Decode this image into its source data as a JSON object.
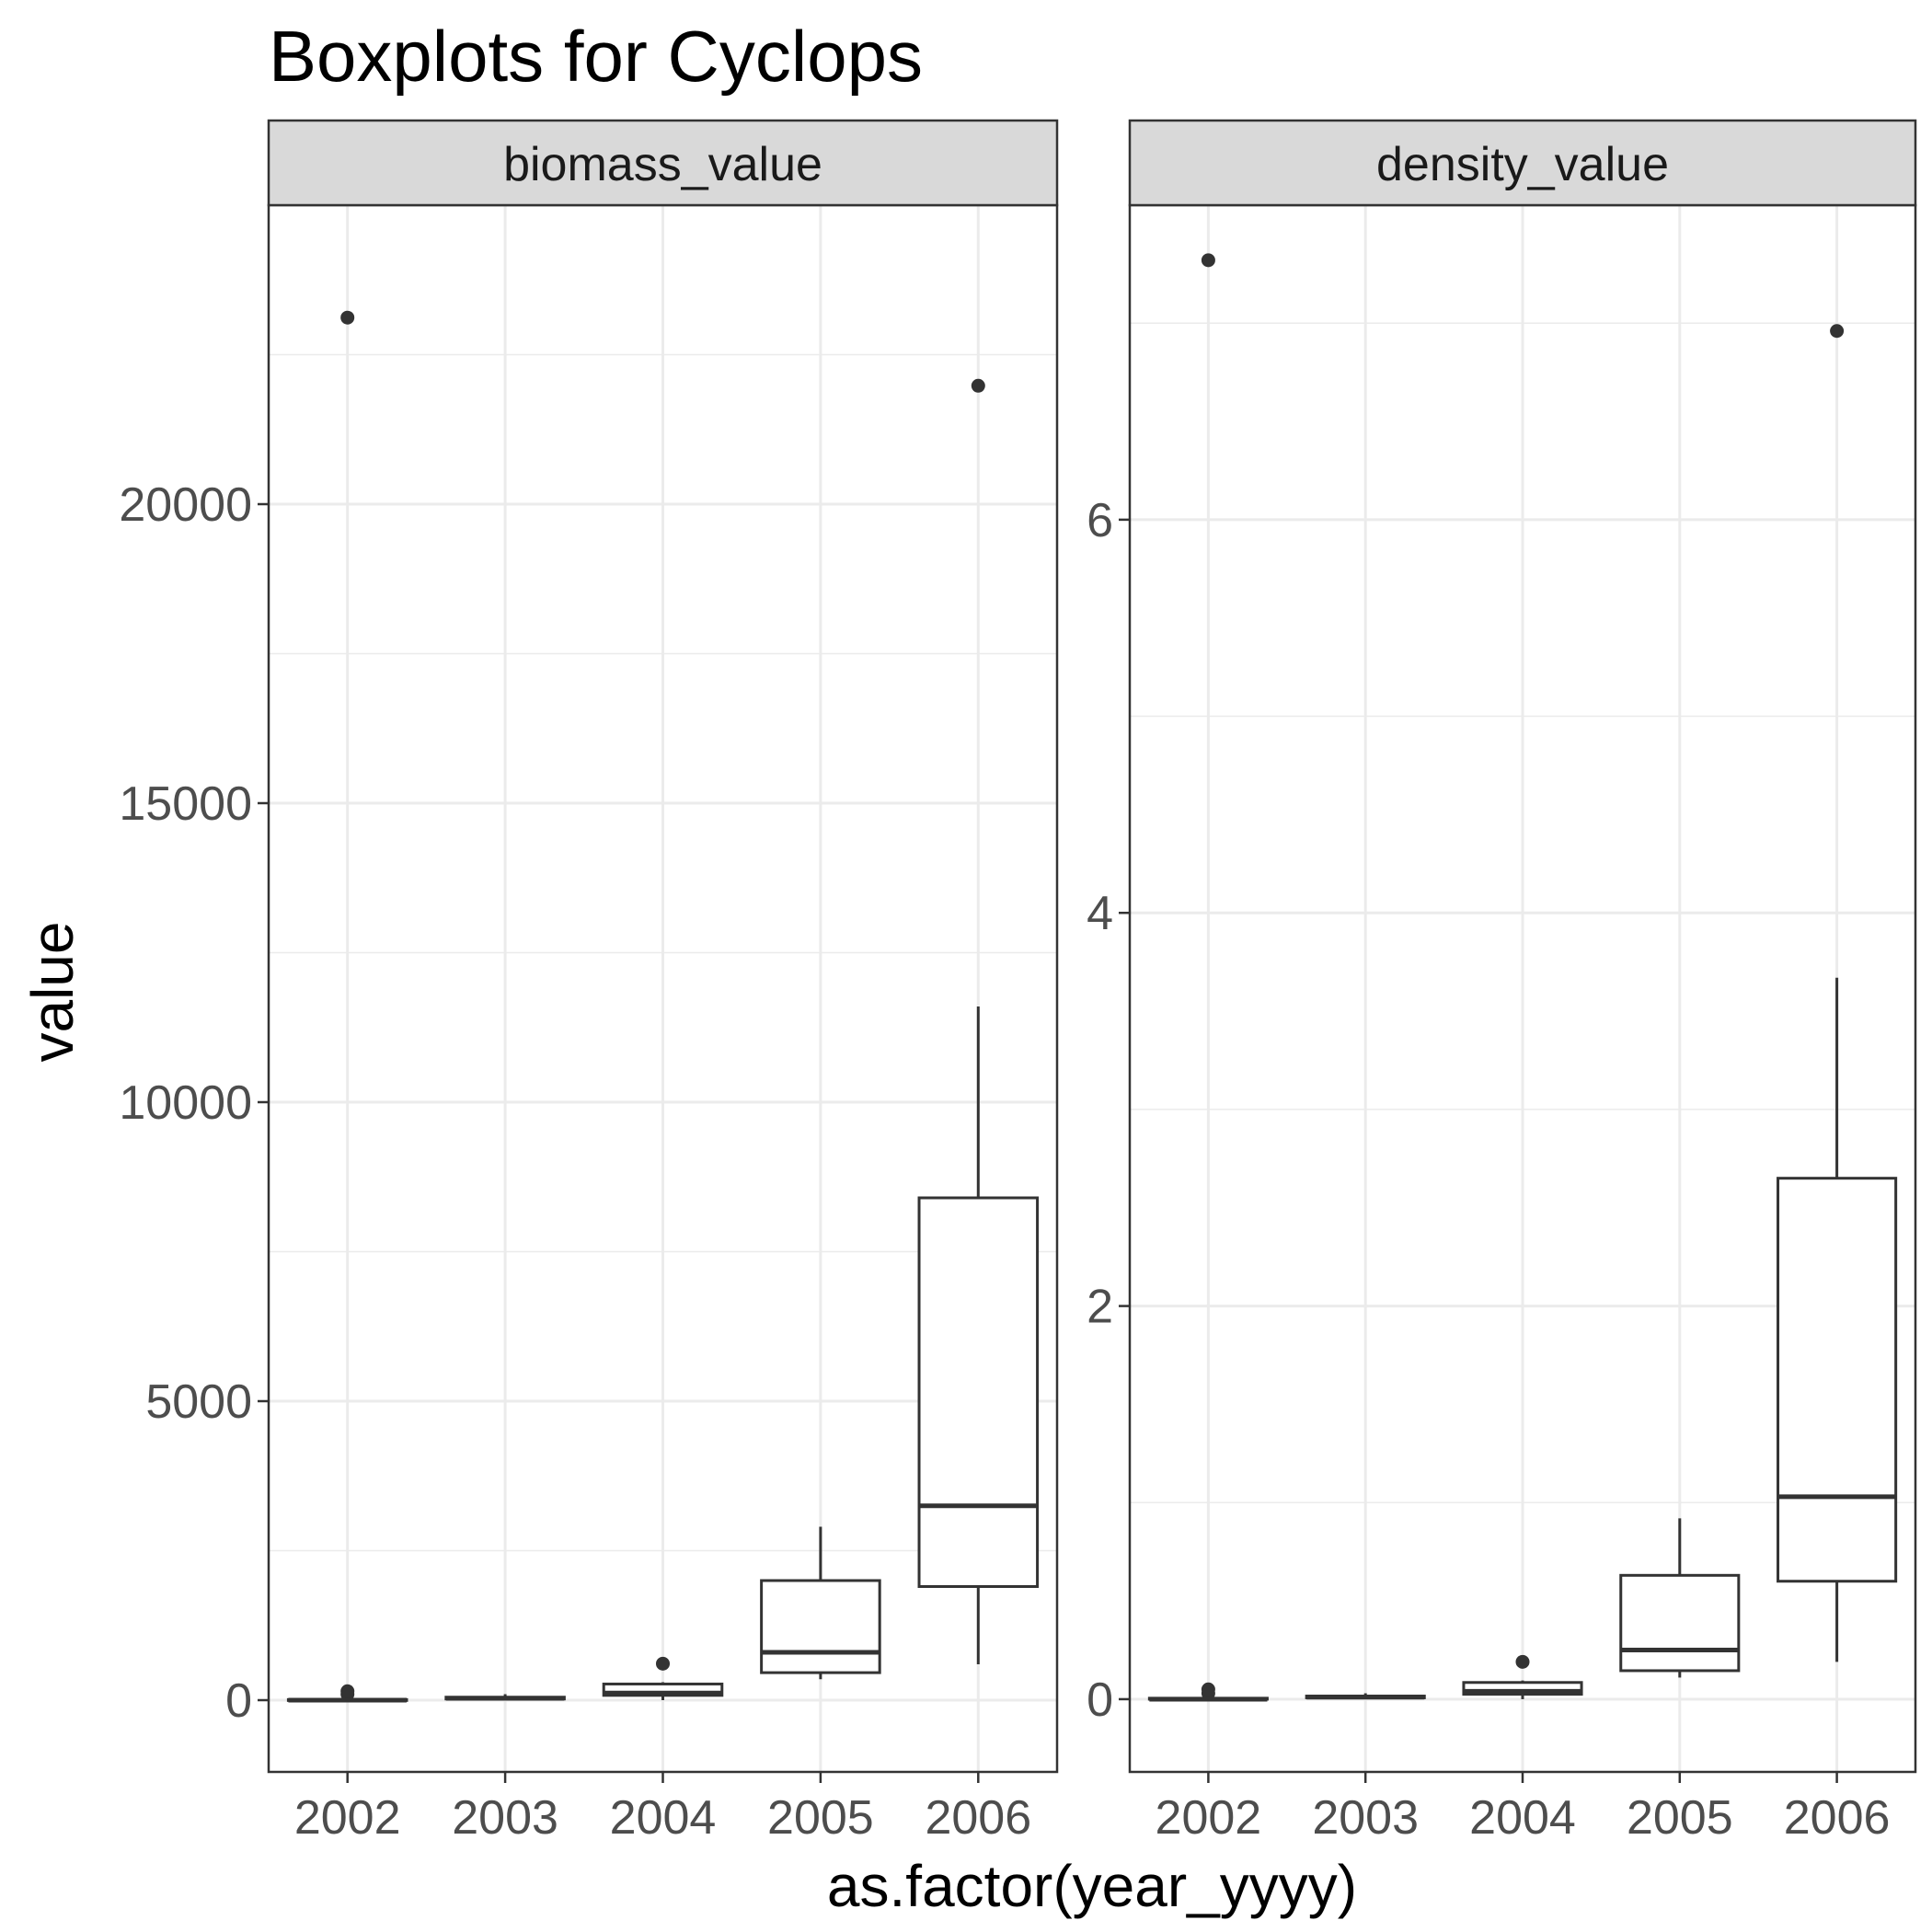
{
  "chart_data": {
    "type": "boxplot",
    "title": "Boxplots for Cyclops",
    "xlabel": "as.factor(year_yyyy)",
    "ylabel": "value",
    "categories": [
      "2002",
      "2003",
      "2004",
      "2005",
      "2006"
    ],
    "grid": true,
    "legend": "none",
    "colors": {
      "box_line": "#333333",
      "grid": "#ebebeb",
      "strip_fill": "#d9d9d9",
      "panel_border": "#333333"
    },
    "panels": [
      {
        "name": "biomass_value",
        "ylim": [
          -1200,
          25000
        ],
        "yticks": [
          0,
          5000,
          10000,
          15000,
          20000
        ],
        "ytick_labels": [
          "0",
          "5000",
          "10000",
          "15000",
          "20000"
        ],
        "ygrid_minor": [
          2500,
          7500,
          12500,
          17500,
          22500
        ],
        "boxes": [
          {
            "x": "2002",
            "whisker_low": 0,
            "q1": 0,
            "median": 0,
            "q3": 10,
            "whisker_high": 60,
            "outliers": [
              100,
              150,
              23120
            ]
          },
          {
            "x": "2003",
            "whisker_low": 0,
            "q1": 20,
            "median": 30,
            "q3": 50,
            "whisker_high": 100,
            "outliers": []
          },
          {
            "x": "2004",
            "whisker_low": 0,
            "q1": 80,
            "median": 120,
            "q3": 270,
            "whisker_high": 300,
            "outliers": [
              610
            ]
          },
          {
            "x": "2005",
            "whisker_low": 350,
            "q1": 460,
            "median": 800,
            "q3": 2000,
            "whisker_high": 2900,
            "outliers": []
          },
          {
            "x": "2006",
            "whisker_low": 600,
            "q1": 1900,
            "median": 3250,
            "q3": 8400,
            "whisker_high": 11600,
            "outliers": [
              21980
            ]
          }
        ]
      },
      {
        "name": "density_value",
        "ylim": [
          -0.37,
          7.6
        ],
        "yticks": [
          0,
          2,
          4,
          6
        ],
        "ytick_labels": [
          "0",
          "2",
          "4",
          "6"
        ],
        "ygrid_minor": [
          1,
          3,
          5,
          7
        ],
        "boxes": [
          {
            "x": "2002",
            "whisker_low": 0,
            "q1": 0,
            "median": 0,
            "q3": 0.005,
            "whisker_high": 0.02,
            "outliers": [
              0.03,
              0.05,
              7.32
            ]
          },
          {
            "x": "2003",
            "whisker_low": 0,
            "q1": 0.007,
            "median": 0.01,
            "q3": 0.016,
            "whisker_high": 0.03,
            "outliers": []
          },
          {
            "x": "2004",
            "whisker_low": 0,
            "q1": 0.025,
            "median": 0.04,
            "q3": 0.085,
            "whisker_high": 0.095,
            "outliers": [
              0.19
            ]
          },
          {
            "x": "2005",
            "whisker_low": 0.11,
            "q1": 0.145,
            "median": 0.25,
            "q3": 0.63,
            "whisker_high": 0.92,
            "outliers": []
          },
          {
            "x": "2006",
            "whisker_low": 0.19,
            "q1": 0.6,
            "median": 1.03,
            "q3": 2.65,
            "whisker_high": 3.67,
            "outliers": [
              6.96
            ]
          }
        ]
      }
    ]
  }
}
